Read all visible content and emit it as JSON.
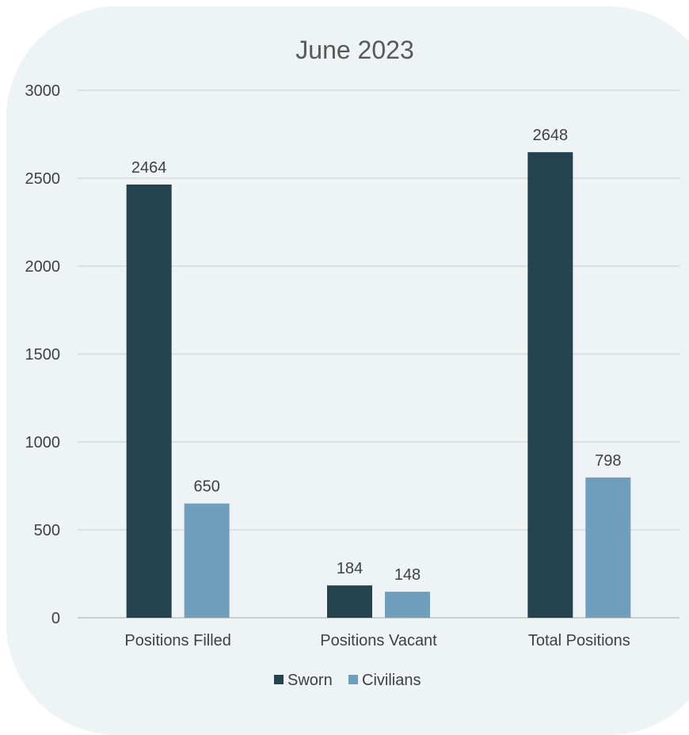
{
  "colors": {
    "sworn": "#25424f",
    "civilians": "#6f9fbd",
    "grid": "#d9d9d9",
    "axis": "#bfbfbf"
  },
  "chart_data": {
    "type": "bar",
    "title": "June  2023",
    "categories": [
      "Positions Filled",
      "Positions Vacant",
      "Total Positions"
    ],
    "series": [
      {
        "name": "Sworn",
        "values": [
          2464,
          184,
          2648
        ]
      },
      {
        "name": "Civilians",
        "values": [
          650,
          148,
          798
        ]
      }
    ],
    "ylim": [
      0,
      3000
    ],
    "yticks": [
      "0",
      "500",
      "1000",
      "1500",
      "2000",
      "2500",
      "3000"
    ],
    "grid": true,
    "legend_position": "bottom"
  }
}
